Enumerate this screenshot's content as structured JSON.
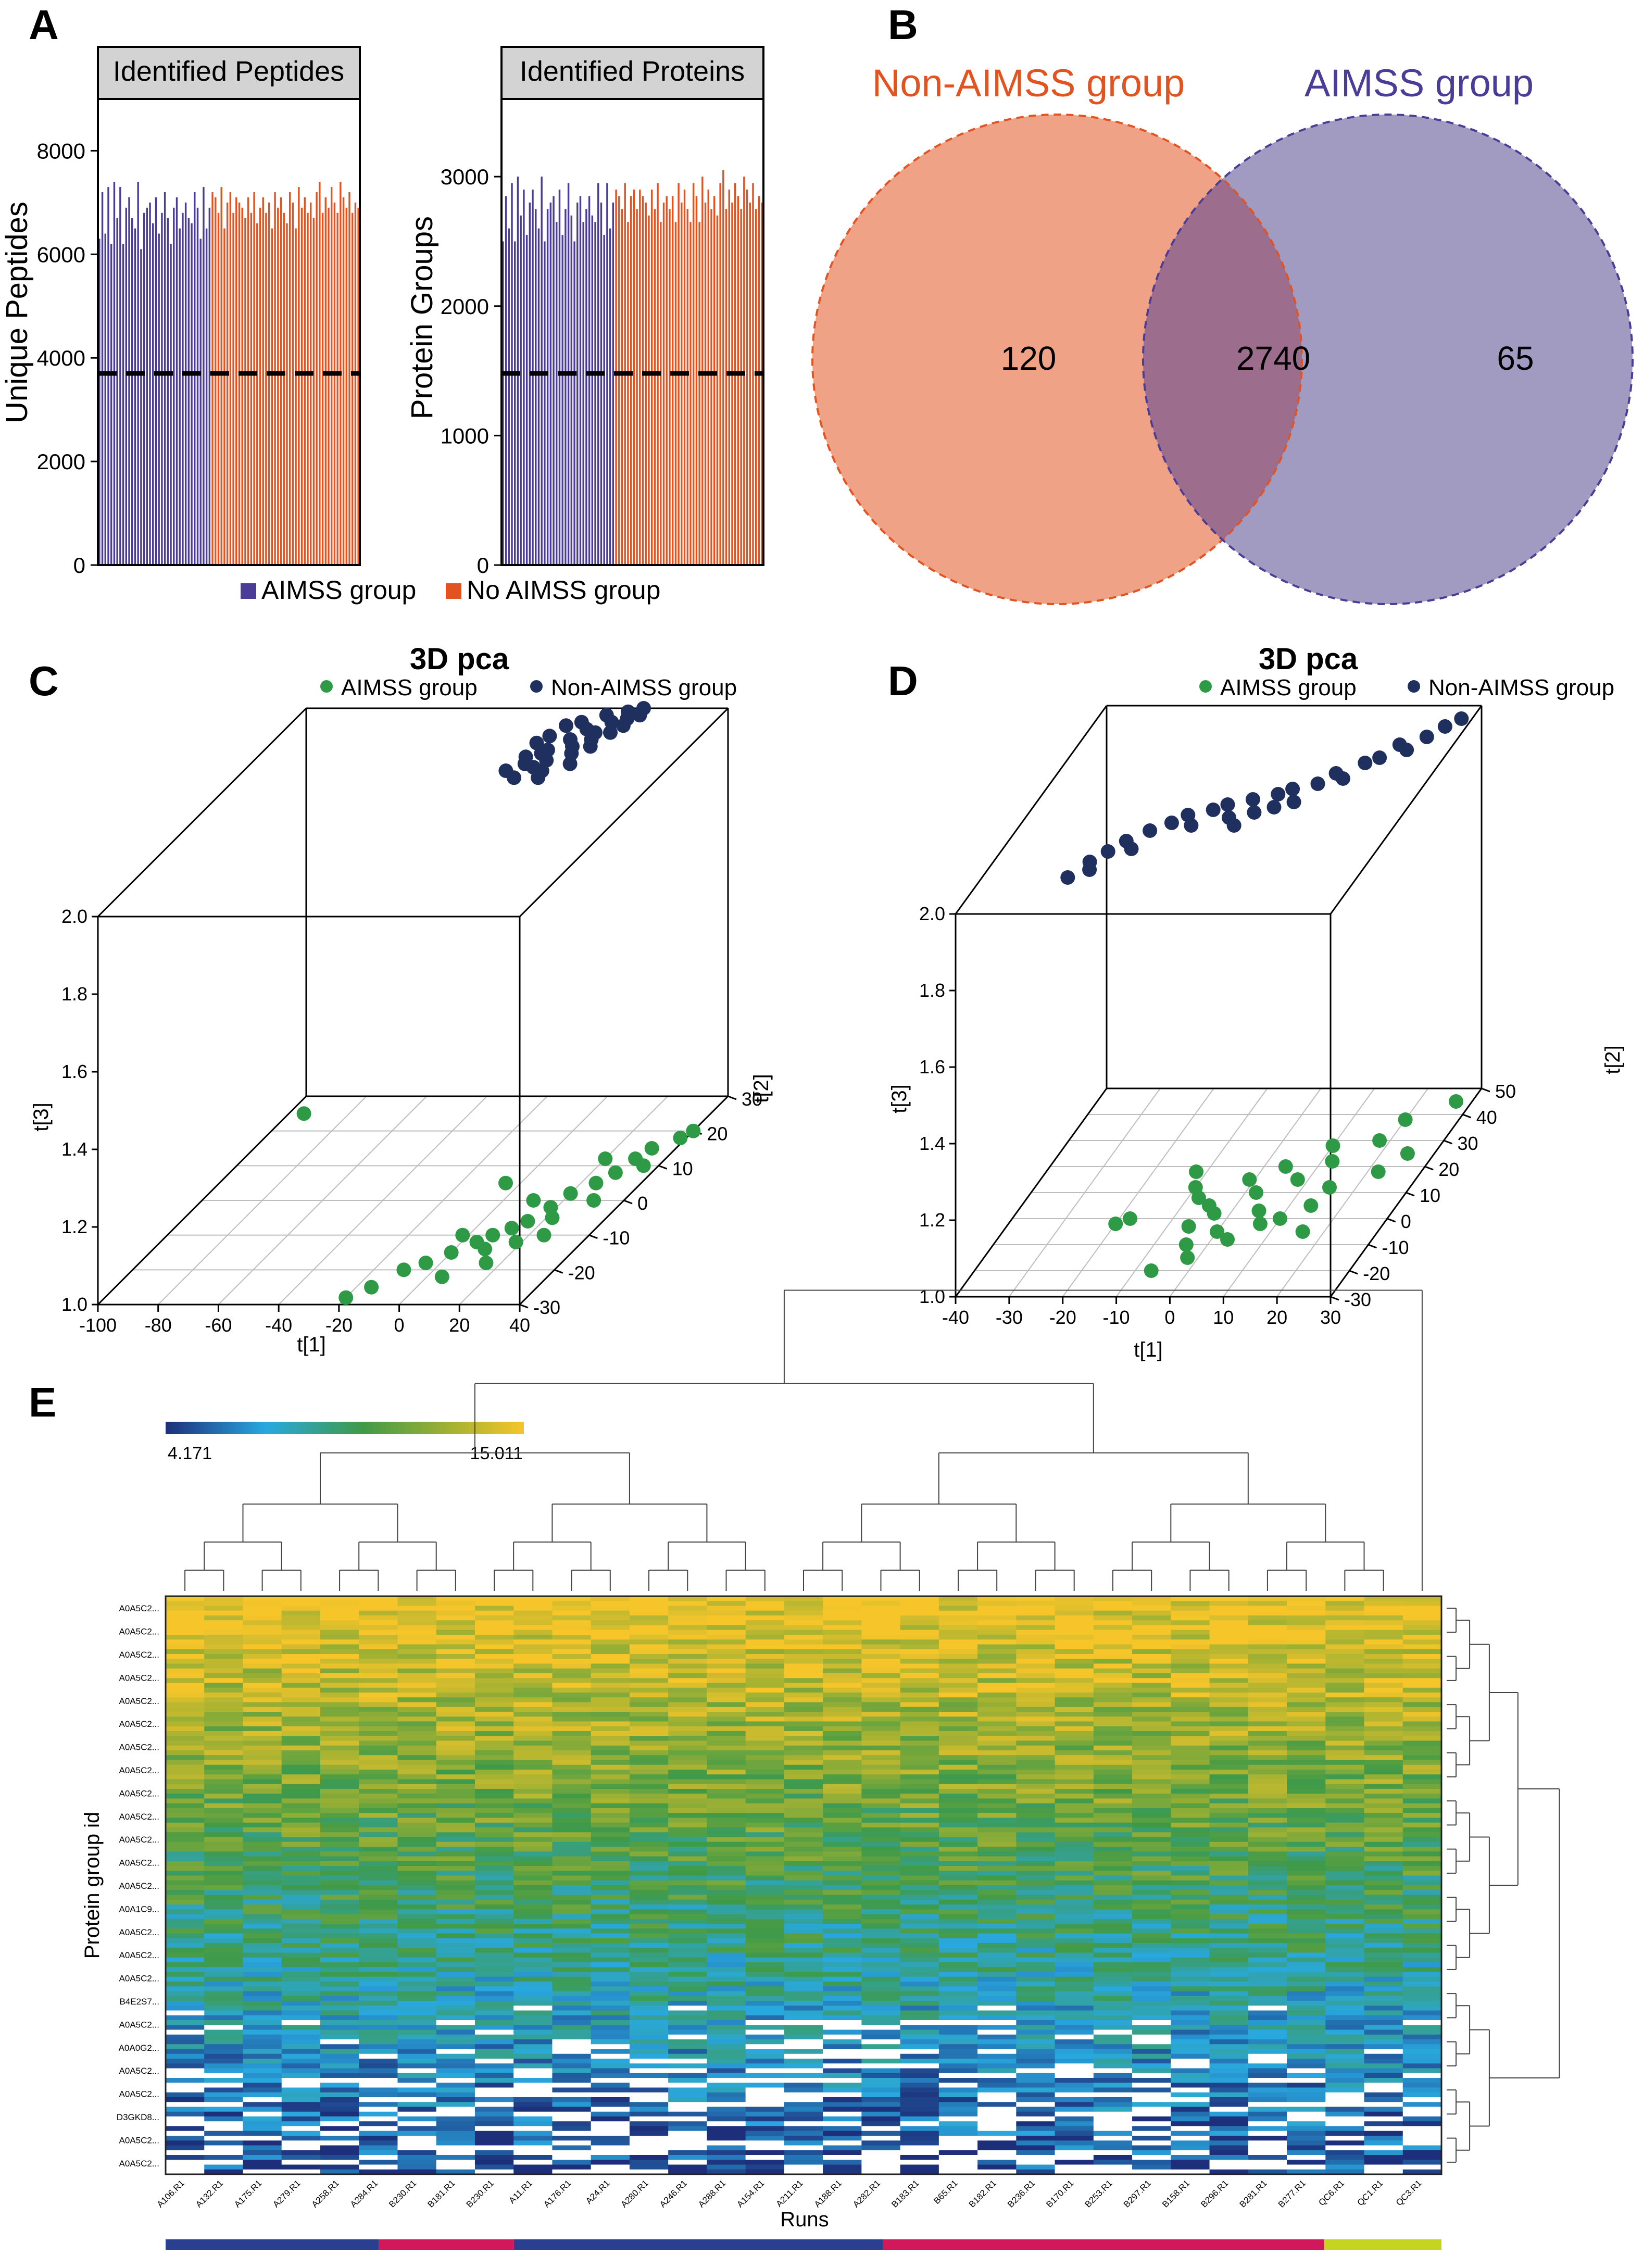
{
  "panels": {
    "a": "A",
    "b": "B",
    "c": "C",
    "d": "D",
    "e": "E"
  },
  "colors": {
    "aimss_bar": "#4b3d97",
    "non_aimss_bar": "#e3531f",
    "venn_left": "#f0a287",
    "venn_right": "#a19bc2",
    "venn_overlap": "#9c6d8c",
    "venn_left_label": "#e3531f",
    "venn_right_label": "#4b3d97",
    "pca_aimss": "#2e9a46",
    "pca_non_aimss": "#1f2f5e",
    "heatmap_low": "#1d3f93",
    "heatmap_mid": "#3f9a48",
    "heatmap_high": "#f2c72a"
  },
  "chart_data": [
    {
      "id": "A1",
      "type": "bar",
      "title": "Identified Peptides",
      "ylabel": "Unique Peptides",
      "xlabel": "",
      "ylim": [
        0,
        9000
      ],
      "yticks": [
        0,
        2000,
        4000,
        6000,
        8000
      ],
      "reference_line": 3700,
      "series": [
        {
          "name": "AIMSS group",
          "values": [
            6300,
            7200,
            6400,
            7300,
            6200,
            7400,
            6700,
            7300,
            6200,
            6900,
            7100,
            6700,
            6500,
            7400,
            6100,
            6800,
            6900,
            7000,
            6600,
            7100,
            6400,
            6800,
            7200,
            6700,
            6200,
            6900,
            7100,
            6500,
            6800,
            7000,
            6700,
            6600,
            7200,
            6900,
            6300,
            7300,
            6500,
            6900
          ]
        },
        {
          "name": "No AIMSS group",
          "values": [
            7200,
            7100,
            6800,
            7300,
            6500,
            7000,
            7200,
            6800,
            7100,
            7000,
            6900,
            6700,
            7100,
            6800,
            7200,
            6600,
            6900,
            7100,
            6800,
            7000,
            6500,
            7200,
            6900,
            7100,
            6800,
            6600,
            7200,
            7000,
            6500,
            7300,
            6900,
            7100,
            6800,
            7000,
            6700,
            7200,
            7400,
            6800,
            7100,
            6900,
            7300,
            7000,
            6800,
            7400,
            7100,
            6900,
            7200,
            6800,
            7000,
            6900
          ]
        }
      ],
      "legend": [
        "AIMSS group",
        "No AIMSS group"
      ]
    },
    {
      "id": "A2",
      "type": "bar",
      "title": "Identified Proteins",
      "ylabel": "Protein Groups",
      "xlabel": "",
      "ylim": [
        0,
        3600
      ],
      "yticks": [
        0,
        1000,
        2000,
        3000
      ],
      "reference_line": 1480,
      "series": [
        {
          "name": "AIMSS group",
          "values": [
            2500,
            2850,
            2600,
            2950,
            2500,
            3000,
            2700,
            2900,
            2550,
            2800,
            2900,
            2750,
            2600,
            3000,
            2500,
            2750,
            2800,
            2850,
            2650,
            2900,
            2550,
            2750,
            2950,
            2700,
            2500,
            2800,
            2850,
            2650,
            2750,
            2850,
            2700,
            2650,
            2950,
            2800,
            2550,
            2950,
            2600,
            2800
          ]
        },
        {
          "name": "No AIMSS group",
          "values": [
            2900,
            2850,
            2750,
            2950,
            2650,
            2850,
            2900,
            2750,
            2900,
            2850,
            2800,
            2700,
            2900,
            2750,
            2950,
            2650,
            2800,
            2850,
            2750,
            2850,
            2650,
            2950,
            2800,
            2900,
            2750,
            2650,
            2950,
            2850,
            2650,
            3000,
            2800,
            2900,
            2750,
            2850,
            2700,
            2950,
            3050,
            2750,
            2900,
            2800,
            2950,
            2850,
            2750,
            3000,
            2900,
            2800,
            2950,
            2750,
            2850,
            2800
          ]
        }
      ]
    },
    {
      "id": "B",
      "type": "venn",
      "sets": [
        {
          "name": "Non-AIMSS group",
          "only": 120
        },
        {
          "name": "AIMSS group",
          "only": 65
        }
      ],
      "overlap": 2740
    },
    {
      "id": "C",
      "type": "scatter3d",
      "title": "3D pca",
      "legend": [
        "AIMSS group",
        "Non-AIMSS group"
      ],
      "xlabel": "t[1]",
      "ylabel": "t[2]",
      "zlabel": "t[3]",
      "xlim": [
        -100,
        40
      ],
      "ylim": [
        -30,
        30
      ],
      "zlim": [
        1.0,
        2.0
      ],
      "xticks": [
        -100,
        -80,
        -60,
        -40,
        -20,
        0,
        20,
        40
      ],
      "yticks": [
        -30,
        -20,
        -10,
        0,
        10,
        20,
        30
      ],
      "zticks": [
        1.0,
        1.2,
        1.4,
        1.6,
        1.8,
        2.0
      ],
      "series": [
        {
          "name": "AIMSS group",
          "points": [
            [
              -95,
              25,
              1.0
            ],
            [
              -20,
              -28,
              1.0
            ],
            [
              -15,
              -25,
              1.0
            ],
            [
              -10,
              -20,
              1.0
            ],
            [
              -5,
              -18,
              1.0
            ],
            [
              0,
              -15,
              1.0
            ],
            [
              5,
              -12,
              1.0
            ],
            [
              8,
              -10,
              1.0
            ],
            [
              10,
              -14,
              1.0
            ],
            [
              12,
              -8,
              1.0
            ],
            [
              15,
              -6,
              1.0
            ],
            [
              18,
              -2,
              1.0
            ],
            [
              20,
              2,
              1.0
            ],
            [
              22,
              -5,
              1.0
            ],
            [
              25,
              5,
              1.0
            ],
            [
              28,
              8,
              1.0
            ],
            [
              30,
              12,
              1.0
            ],
            [
              32,
              15,
              1.0
            ],
            [
              35,
              10,
              1.0
            ],
            [
              38,
              18,
              1.0
            ],
            [
              40,
              20,
              1.0
            ],
            [
              15,
              -18,
              1.0
            ],
            [
              5,
              -22,
              1.0
            ],
            [
              25,
              -10,
              1.0
            ],
            [
              -2,
              -10,
              1.0
            ],
            [
              10,
              0,
              1.0
            ],
            [
              30,
              0,
              1.0
            ],
            [
              20,
              12,
              1.0
            ],
            [
              -5,
              5,
              1.0
            ],
            [
              18,
              -12,
              1.0
            ]
          ]
        },
        {
          "name": "Non-AIMSS group",
          "points": [
            [
              -12,
              20,
              2.0
            ],
            [
              -10,
              22,
              2.0
            ],
            [
              -8,
              25,
              2.0
            ],
            [
              -6,
              18,
              2.0
            ],
            [
              -4,
              26,
              2.0
            ],
            [
              -2,
              21,
              2.0
            ],
            [
              0,
              24,
              2.0
            ],
            [
              2,
              28,
              2.0
            ],
            [
              4,
              23,
              2.0
            ],
            [
              6,
              26,
              2.0
            ],
            [
              8,
              29,
              2.0
            ],
            [
              10,
              27,
              2.0
            ],
            [
              12,
              30,
              2.0
            ],
            [
              -11,
              16,
              2.0
            ],
            [
              -9,
              14,
              2.0
            ],
            [
              -7,
              17,
              2.0
            ],
            [
              -5,
              13,
              2.0
            ],
            [
              -3,
              15,
              2.0
            ],
            [
              -1,
              12,
              2.0
            ],
            [
              1,
              19,
              2.0
            ],
            [
              3,
              17,
              2.0
            ],
            [
              5,
              21,
              2.0
            ],
            [
              7,
              19,
              2.0
            ],
            [
              9,
              23,
              2.0
            ],
            [
              11,
              25,
              2.0
            ],
            [
              13,
              28,
              2.0
            ],
            [
              -13,
              12,
              2.0
            ],
            [
              0,
              10,
              2.0
            ],
            [
              6,
              14,
              2.0
            ],
            [
              -8,
              10,
              2.0
            ]
          ]
        }
      ]
    },
    {
      "id": "D",
      "type": "scatter3d",
      "title": "3D pca",
      "legend": [
        "AIMSS group",
        "Non-AIMSS group"
      ],
      "xlabel": "t[1]",
      "ylabel": "t[2]",
      "zlabel": "t[3]",
      "xlim": [
        -40,
        30
      ],
      "ylim": [
        -30,
        50
      ],
      "zlim": [
        1.0,
        2.0
      ],
      "xticks": [
        -40,
        -30,
        -20,
        -10,
        0,
        10,
        20,
        30
      ],
      "yticks": [
        -30,
        -20,
        -10,
        0,
        10,
        20,
        30,
        40,
        50
      ],
      "zticks": [
        1.0,
        1.2,
        1.4,
        1.6,
        1.8,
        2.0
      ],
      "series": [
        {
          "name": "AIMSS group",
          "points": [
            [
              -18,
              0,
              1.0
            ],
            [
              -20,
              -2,
              1.0
            ],
            [
              -5,
              5,
              1.0
            ],
            [
              -8,
              8,
              1.0
            ],
            [
              -3,
              2,
              1.0
            ],
            [
              0,
              -5,
              1.0
            ],
            [
              2,
              10,
              1.0
            ],
            [
              5,
              3,
              1.0
            ],
            [
              8,
              15,
              1.0
            ],
            [
              10,
              0,
              1.0
            ],
            [
              12,
              22,
              1.0
            ],
            [
              15,
              12,
              1.0
            ],
            [
              18,
              30,
              1.0
            ],
            [
              20,
              38,
              1.0
            ],
            [
              22,
              18,
              1.0
            ],
            [
              25,
              25,
              1.0
            ],
            [
              -10,
              12,
              1.0
            ],
            [
              -6,
              -3,
              1.0
            ],
            [
              -4,
              -10,
              1.0
            ],
            [
              3,
              -8,
              1.0
            ],
            [
              7,
              -2,
              1.0
            ],
            [
              -2,
              -15,
              1.0
            ],
            [
              14,
              5,
              1.0
            ],
            [
              -7,
              -20,
              1.0
            ],
            [
              -12,
              18,
              1.0
            ],
            [
              4,
              20,
              1.0
            ],
            [
              16,
              -5,
              1.0
            ],
            [
              -1,
              15,
              1.0
            ],
            [
              10,
              28,
              1.0
            ],
            [
              27,
              45,
              1.0
            ]
          ]
        },
        {
          "name": "Non-AIMSS group",
          "points": [
            [
              -22,
              -10,
              2.0
            ],
            [
              -20,
              -6,
              2.0
            ],
            [
              -18,
              -2,
              2.0
            ],
            [
              -15,
              2,
              2.0
            ],
            [
              -12,
              5,
              2.0
            ],
            [
              -10,
              8,
              2.0
            ],
            [
              -8,
              4,
              2.0
            ],
            [
              -6,
              10,
              2.0
            ],
            [
              -4,
              12,
              2.0
            ],
            [
              -2,
              7,
              2.0
            ],
            [
              0,
              14,
              2.0
            ],
            [
              2,
              9,
              2.0
            ],
            [
              4,
              16,
              2.0
            ],
            [
              6,
              18,
              2.0
            ],
            [
              8,
              13,
              2.0
            ],
            [
              10,
              20,
              2.0
            ],
            [
              12,
              24,
              2.0
            ],
            [
              14,
              22,
              2.0
            ],
            [
              16,
              28,
              2.0
            ],
            [
              18,
              30,
              2.0
            ],
            [
              20,
              35,
              2.0
            ],
            [
              22,
              33,
              2.0
            ],
            [
              24,
              38,
              2.0
            ],
            [
              26,
              42,
              2.0
            ],
            [
              28,
              45,
              2.0
            ],
            [
              -21,
              -13,
              2.0
            ],
            [
              -16,
              -5,
              2.0
            ],
            [
              0,
              4,
              2.0
            ],
            [
              5,
              11,
              2.0
            ],
            [
              -24,
              -16,
              2.0
            ]
          ]
        }
      ]
    },
    {
      "id": "E",
      "type": "heatmap",
      "colorbar_min": "4.171",
      "colorbar_max": "15.011",
      "xlabel": "Runs",
      "ylabel": "Protein group id",
      "row_labels": [
        "A0A5C2...",
        "A0A5C2...",
        "A0A5C2...",
        "A0A5C2...",
        "A0A5C2...",
        "A0A5C2...",
        "A0A5C2...",
        "A0A5C2...",
        "A0A5C2...",
        "A0A5C2...",
        "A0A5C2...",
        "A0A5C2...",
        "A0A5C2...",
        "A0A1C9...",
        "A0A5C2...",
        "A0A5C2...",
        "A0A5C2...",
        "B4E2S7...",
        "A0A5C2...",
        "A0A0G2...",
        "A0A5C2...",
        "A0A5C2...",
        "D3GKD8...",
        "A0A5C2...",
        "A0A5C2..."
      ],
      "col_labels": [
        "A106.R1",
        "A132.R1",
        "A175.R1",
        "A279.R1",
        "A258.R1",
        "A284.R1",
        "B230.R1",
        "B181.R1",
        "B230.R1",
        "A11.R1",
        "A176.R1",
        "A24.R1",
        "A280.R1",
        "A246.R1",
        "A288.R1",
        "A154.R1",
        "A211.R1",
        "A188.R1",
        "A282.R1",
        "B183.R1",
        "B65.R1",
        "B182.R1",
        "B236.R1",
        "B170.R1",
        "B253.R1",
        "B297.R1",
        "B158.R1",
        "B296.R1",
        "B281.R1",
        "B277.R1",
        "QC6.R1",
        "QC1.R1",
        "QC3.R1"
      ],
      "group_bar": [
        {
          "group": "AIMSS",
          "color": "#2a3f8f",
          "span": [
            0,
            0.167
          ]
        },
        {
          "group": "Non-AIMSS",
          "color": "#d2185a",
          "span": [
            0.167,
            0.273
          ]
        },
        {
          "group": "AIMSS",
          "color": "#2a3f8f",
          "span": [
            0.273,
            0.562
          ]
        },
        {
          "group": "Non-AIMSS",
          "color": "#d2185a",
          "span": [
            0.562,
            0.908
          ]
        },
        {
          "group": "QC",
          "color": "#c5d41e",
          "span": [
            0.908,
            1.0
          ]
        }
      ]
    }
  ]
}
